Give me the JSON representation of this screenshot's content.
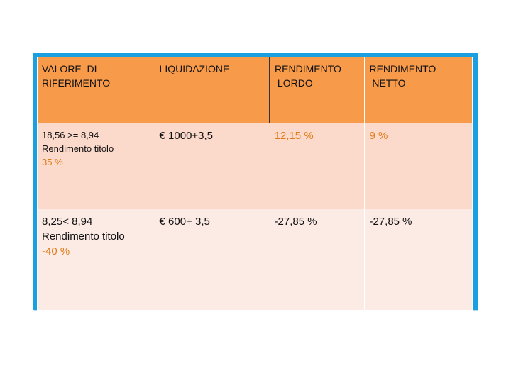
{
  "table": {
    "headers": [
      "VALORE  DI\nRIFERIMENTO",
      "LIQUIDAZIONE",
      "RENDIMENTO\n LORDO",
      "RENDIMENTO\n NETTO"
    ],
    "rows": [
      {
        "riferimento": "18,56 >= 8,94",
        "sottotitolo": "Rendimento titolo",
        "percentuale": "35 %",
        "liquidazione": "€ 1000+3,5",
        "lordo": "12,15 %",
        "netto": "9 %"
      },
      {
        "riferimento": "8,25< 8,94",
        "sottotitolo": "Rendimento titolo",
        "percentuale": "-40 %",
        "liquidazione": "€ 600+ 3,5",
        "lordo": "-27,85 %",
        "netto": "-27,85 %"
      }
    ]
  },
  "colors": {
    "header": "#f79a49",
    "row1": "#fbd9cb",
    "row2": "#fcebe4",
    "border": "#1aa0e0",
    "highlight": "#e07b18"
  }
}
